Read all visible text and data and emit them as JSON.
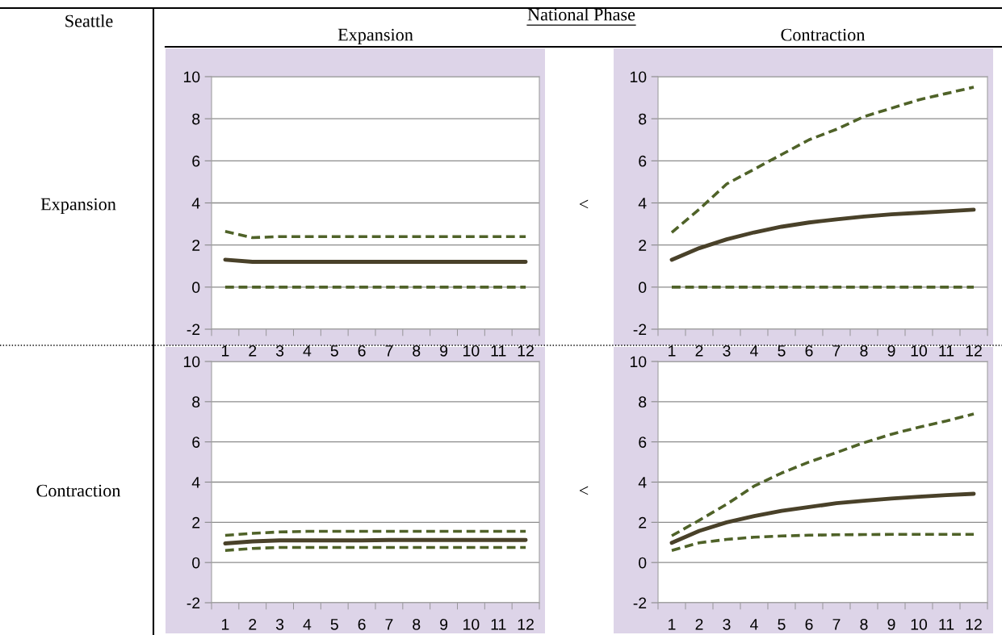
{
  "chart_data": [
    {
      "type": "line",
      "title": "Expansion",
      "ylabel": "Expansion",
      "annotations": [
        "Seattle",
        "National Phase",
        "<"
      ],
      "categories": [
        "1",
        "2",
        "3",
        "4",
        "5",
        "6",
        "7",
        "8",
        "9",
        "10",
        "11",
        "12"
      ],
      "ylim": [
        -2,
        10
      ],
      "yticks": [
        -2,
        0,
        2,
        4,
        6,
        8,
        10
      ],
      "grid": "y",
      "series": [
        {
          "color": "#4f6228",
          "line_style": "dashed",
          "values": [
            2.65,
            2.35,
            2.4,
            2.4,
            2.4,
            2.4,
            2.4,
            2.4,
            2.4,
            2.4,
            2.4,
            2.4
          ]
        },
        {
          "color": "#494129",
          "line_style": "solid",
          "values": [
            1.3,
            1.2,
            1.2,
            1.2,
            1.2,
            1.2,
            1.2,
            1.2,
            1.2,
            1.2,
            1.2,
            1.2
          ]
        },
        {
          "color": "#4f6228",
          "line_style": "dashed",
          "values": [
            0,
            0,
            0,
            0,
            0,
            0,
            0,
            0,
            0,
            0,
            0,
            0
          ]
        }
      ]
    },
    {
      "type": "line",
      "title": "Contraction",
      "categories": [
        "1",
        "2",
        "3",
        "4",
        "5",
        "6",
        "7",
        "8",
        "9",
        "10",
        "11",
        "12"
      ],
      "ylim": [
        -2,
        10
      ],
      "yticks": [
        -2,
        0,
        2,
        4,
        6,
        8,
        10
      ],
      "grid": "y",
      "series": [
        {
          "color": "#4f6228",
          "line_style": "dashed",
          "values": [
            2.6,
            3.7,
            4.9,
            5.6,
            6.3,
            7.0,
            7.5,
            8.1,
            8.5,
            8.9,
            9.2,
            9.5
          ]
        },
        {
          "color": "#494129",
          "line_style": "solid",
          "values": [
            1.3,
            1.85,
            2.27,
            2.6,
            2.87,
            3.07,
            3.22,
            3.35,
            3.46,
            3.53,
            3.6,
            3.68
          ]
        },
        {
          "color": "#4f6228",
          "line_style": "dashed",
          "values": [
            0,
            0,
            0,
            0,
            0,
            0,
            0,
            0,
            0,
            0,
            0,
            0
          ]
        }
      ]
    },
    {
      "type": "line",
      "ylabel": "Contraction",
      "annotations": [
        "<"
      ],
      "categories": [
        "1",
        "2",
        "3",
        "4",
        "5",
        "6",
        "7",
        "8",
        "9",
        "10",
        "11",
        "12"
      ],
      "ylim": [
        -2,
        10
      ],
      "yticks": [
        -2,
        0,
        2,
        4,
        6,
        8,
        10
      ],
      "grid": "y",
      "series": [
        {
          "color": "#4f6228",
          "line_style": "dashed",
          "values": [
            1.35,
            1.45,
            1.52,
            1.55,
            1.55,
            1.55,
            1.55,
            1.55,
            1.55,
            1.55,
            1.55,
            1.55
          ]
        },
        {
          "color": "#494129",
          "line_style": "solid",
          "values": [
            0.95,
            1.05,
            1.1,
            1.1,
            1.1,
            1.1,
            1.12,
            1.12,
            1.12,
            1.12,
            1.12,
            1.12
          ]
        },
        {
          "color": "#4f6228",
          "line_style": "dashed",
          "values": [
            0.6,
            0.7,
            0.75,
            0.75,
            0.75,
            0.75,
            0.75,
            0.75,
            0.75,
            0.75,
            0.75,
            0.75
          ]
        }
      ]
    },
    {
      "type": "line",
      "categories": [
        "1",
        "2",
        "3",
        "4",
        "5",
        "6",
        "7",
        "8",
        "9",
        "10",
        "11",
        "12"
      ],
      "ylim": [
        -2,
        10
      ],
      "yticks": [
        -2,
        0,
        2,
        4,
        6,
        8,
        10
      ],
      "grid": "y",
      "series": [
        {
          "color": "#4f6228",
          "line_style": "dashed",
          "values": [
            1.33,
            2.1,
            2.9,
            3.8,
            4.45,
            5.0,
            5.47,
            5.96,
            6.38,
            6.73,
            7.04,
            7.39
          ]
        },
        {
          "color": "#494129",
          "line_style": "solid",
          "values": [
            0.98,
            1.57,
            2.0,
            2.31,
            2.57,
            2.76,
            2.95,
            3.07,
            3.18,
            3.27,
            3.35,
            3.42
          ]
        },
        {
          "color": "#4f6228",
          "line_style": "dashed",
          "values": [
            0.6,
            0.98,
            1.15,
            1.26,
            1.32,
            1.36,
            1.38,
            1.39,
            1.4,
            1.4,
            1.4,
            1.4
          ]
        }
      ]
    }
  ]
}
